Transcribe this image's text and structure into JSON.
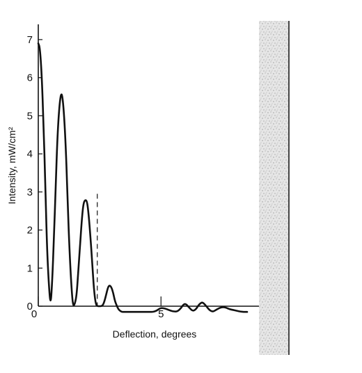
{
  "chart_data": {
    "type": "line",
    "title": "",
    "xlabel": "Deflection, degrees",
    "ylabel": "Intensity, mW/cm²",
    "xlim": [
      0,
      8.8
    ],
    "ylim": [
      0,
      7.4
    ],
    "x_ticks": [
      {
        "value": 0,
        "label": "0"
      },
      {
        "value": 4.7,
        "label": "5"
      }
    ],
    "y_ticks": [
      {
        "value": 0,
        "label": "0"
      },
      {
        "value": 1,
        "label": "1"
      },
      {
        "value": 2,
        "label": "2"
      },
      {
        "value": 3,
        "label": "3"
      },
      {
        "value": 4,
        "label": "4"
      },
      {
        "value": 5,
        "label": "5"
      },
      {
        "value": 6,
        "label": "6"
      },
      {
        "value": 7,
        "label": "7"
      }
    ],
    "dashed_marker_x": 2.26,
    "grid": false,
    "series": [
      {
        "x": [
          0,
          0.06,
          0.13,
          0.2,
          0.27,
          0.33,
          0.4,
          0.47,
          0.53,
          0.6,
          0.67,
          0.73,
          0.8,
          0.87,
          0.93,
          1.0,
          1.07,
          1.13,
          1.2,
          1.27,
          1.33,
          1.4,
          1.47,
          1.53,
          1.6,
          1.67,
          1.73,
          1.8,
          1.87,
          1.93,
          2.0,
          2.07,
          2.13,
          2.2,
          2.27,
          2.33,
          2.4,
          2.47,
          2.53,
          2.6,
          2.67,
          2.73,
          2.8,
          2.87,
          2.93,
          3.0,
          3.07,
          3.13,
          3.2,
          3.27,
          3.33,
          3.4,
          3.47,
          3.53,
          3.6,
          3.67,
          3.8,
          3.93,
          4.0,
          4.13,
          4.27,
          4.4,
          4.53,
          4.67,
          4.8,
          4.93,
          5.07,
          5.2,
          5.33,
          5.47,
          5.53,
          5.6,
          5.67,
          5.73,
          5.8,
          5.87,
          5.93,
          6.0,
          6.07,
          6.13,
          6.2,
          6.27,
          6.33,
          6.4,
          6.47,
          6.53,
          6.6,
          6.67,
          6.73,
          6.8,
          6.93,
          7.07,
          7.2,
          7.33,
          7.47,
          7.6,
          7.73,
          7.87,
          8.0
        ],
        "y": [
          6.9,
          6.8,
          6.1,
          4.8,
          3.2,
          1.6,
          0.6,
          0.0,
          0.6,
          1.8,
          3.2,
          4.4,
          5.2,
          5.6,
          5.5,
          4.9,
          3.9,
          2.6,
          1.4,
          0.5,
          0.0,
          0.05,
          0.3,
          0.9,
          1.6,
          2.3,
          2.7,
          2.8,
          2.75,
          2.4,
          1.8,
          1.1,
          0.45,
          0.05,
          0.0,
          0.0,
          0.0,
          0.02,
          0.12,
          0.3,
          0.5,
          0.55,
          0.5,
          0.35,
          0.15,
          0.02,
          -0.08,
          -0.12,
          -0.15,
          -0.15,
          -0.15,
          -0.15,
          -0.15,
          -0.15,
          -0.15,
          -0.15,
          -0.15,
          -0.15,
          -0.15,
          -0.15,
          -0.15,
          -0.15,
          -0.12,
          -0.05,
          -0.05,
          -0.08,
          -0.12,
          -0.14,
          -0.14,
          -0.05,
          0.02,
          0.06,
          0.05,
          0.0,
          -0.05,
          -0.1,
          -0.12,
          -0.1,
          -0.05,
          0.02,
          0.07,
          0.1,
          0.08,
          0.03,
          -0.03,
          -0.08,
          -0.12,
          -0.14,
          -0.13,
          -0.1,
          -0.05,
          -0.02,
          -0.04,
          -0.08,
          -0.1,
          -0.12,
          -0.14,
          -0.15,
          -0.15
        ]
      }
    ]
  }
}
